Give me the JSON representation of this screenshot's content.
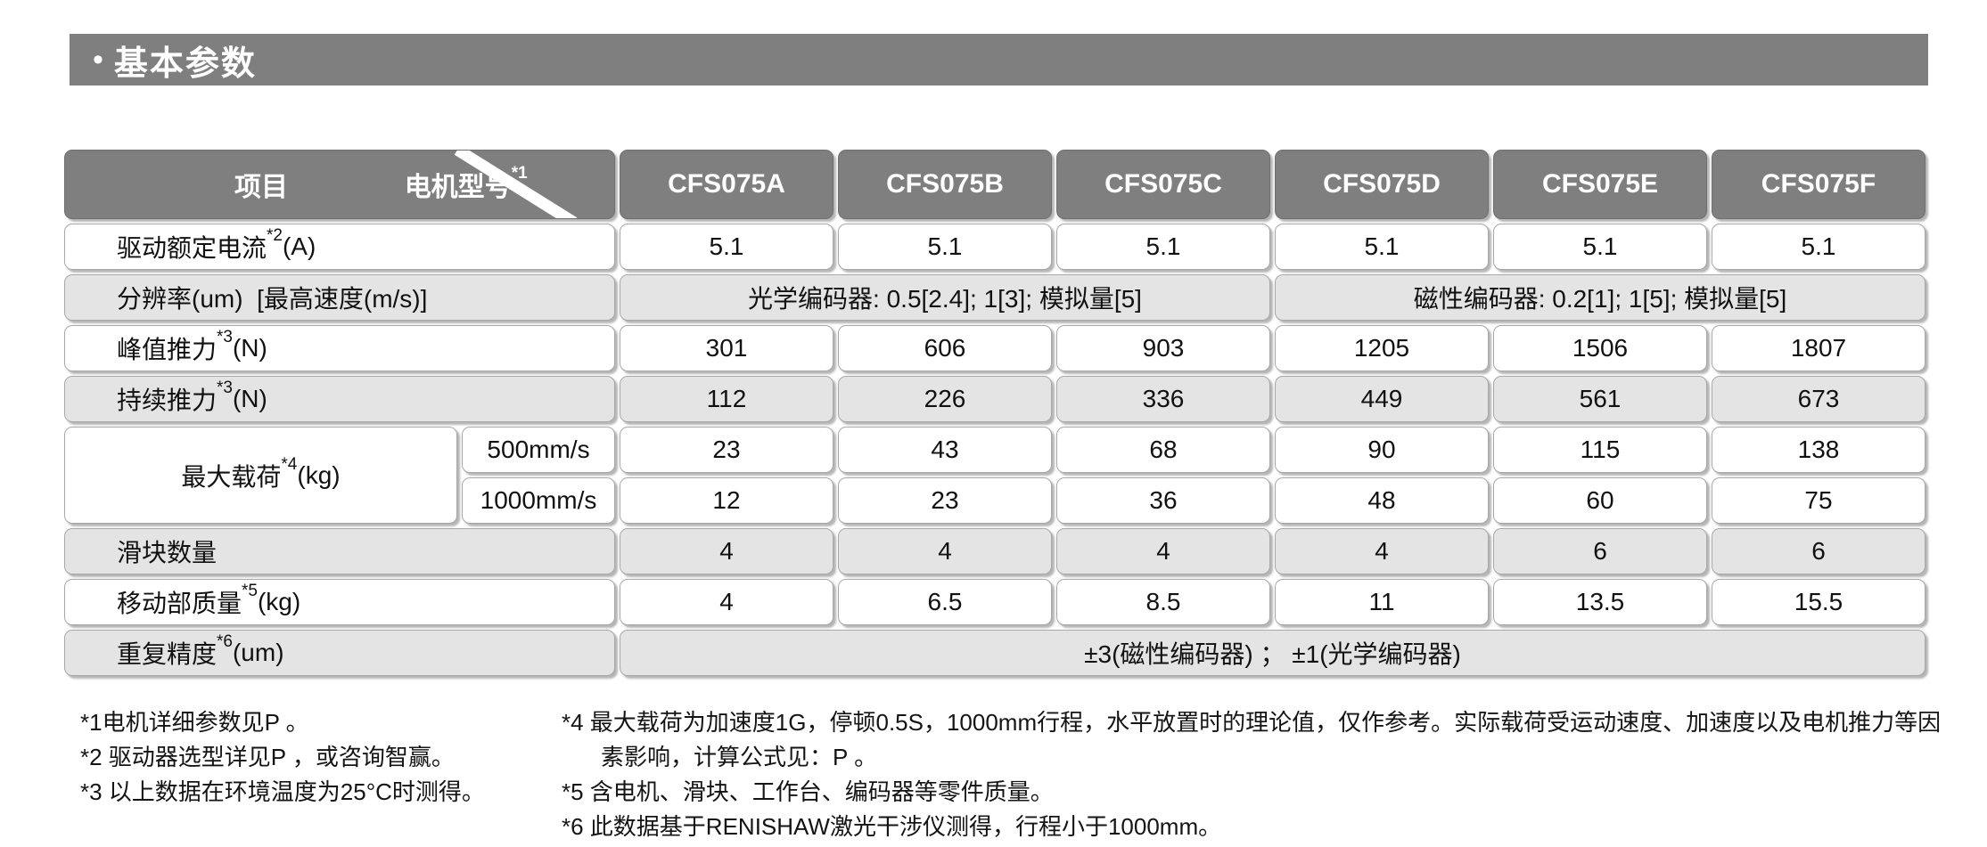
{
  "page": {
    "title_bullet": "•",
    "title": "基本参数"
  },
  "colors": {
    "banner_bg": "#7f7f7f",
    "header_bg": "#7f7f7f",
    "row_alt_bg": "#e4e4e4",
    "cell_border": "#a8a8a8"
  },
  "table": {
    "corner_left": "项目",
    "corner_right": "电机型号",
    "corner_right_sup": "*1",
    "columns": [
      "CFS075A",
      "CFS075B",
      "CFS075C",
      "CFS075D",
      "CFS075E",
      "CFS075F"
    ],
    "rows": {
      "current": {
        "label": "驱动额定电流",
        "sup": "*2",
        "unit": "(A)",
        "values": [
          "5.1",
          "5.1",
          "5.1",
          "5.1",
          "5.1",
          "5.1"
        ]
      },
      "resolution": {
        "label": "分辨率(um)  [最高速度(m/s)]",
        "optical": "光学编码器: 0.5[2.4];   1[3];   模拟量[5]",
        "magnetic": "磁性编码器: 0.2[1];   1[5];   模拟量[5]"
      },
      "peak_thrust": {
        "label": "峰值推力",
        "sup": "*3",
        "unit": "(N)",
        "values": [
          "301",
          "606",
          "903",
          "1205",
          "1506",
          "1807"
        ]
      },
      "cont_thrust": {
        "label": "持续推力",
        "sup": "*3",
        "unit": "(N)",
        "values": [
          "112",
          "226",
          "336",
          "449",
          "561",
          "673"
        ]
      },
      "max_load": {
        "label": "最大载荷",
        "sup": "*4",
        "unit": "(kg)",
        "speed1": "500mm/s",
        "values1": [
          "23",
          "43",
          "68",
          "90",
          "115",
          "138"
        ],
        "speed2": "1000mm/s",
        "values2": [
          "12",
          "23",
          "36",
          "48",
          "60",
          "75"
        ]
      },
      "slider_count": {
        "label": "滑块数量",
        "values": [
          "4",
          "4",
          "4",
          "4",
          "6",
          "6"
        ]
      },
      "moving_mass": {
        "label": "移动部质量",
        "sup": "*5",
        "unit": "(kg)",
        "values": [
          "4",
          "6.5",
          "8.5",
          "11",
          "13.5",
          "15.5"
        ]
      },
      "repeatability": {
        "label": "重复精度",
        "sup": "*6",
        "unit": "(um)",
        "value": "±3(磁性编码器) ；  ±1(光学编码器)"
      }
    }
  },
  "footnotes": {
    "left": [
      "*1电机详细参数见P 。",
      "*2 驱动器选型详见P ，或咨询智赢。",
      "*3 以上数据在环境温度为25°C时测得。"
    ],
    "right": [
      "*4 最大载荷为加速度1G，停顿0.5S，1000mm行程，水平放置时的理论值，仅作参考。实际载荷受运动速度、加速度以及电机推力等因素影响，计算公式见：P 。",
      "*5 含电机、滑块、工作台、编码器等零件质量。",
      "*6 此数据基于RENISHAW激光干涉仪测得，行程小于1000mm。"
    ]
  }
}
